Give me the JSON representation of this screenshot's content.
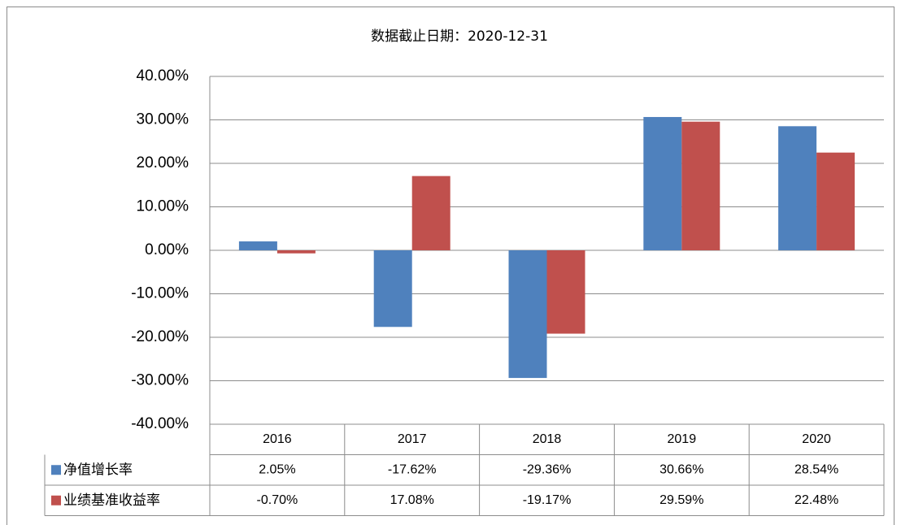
{
  "chart_data": {
    "type": "bar",
    "title": "数据截止日期：2020-12-31",
    "categories": [
      "2016",
      "2017",
      "2018",
      "2019",
      "2020"
    ],
    "series": [
      {
        "name": "净值增长率",
        "color": "#4f81bd",
        "values": [
          2.05,
          -17.62,
          -29.36,
          30.66,
          28.54
        ],
        "value_labels": [
          "2.05%",
          "-17.62%",
          "-29.36%",
          "30.66%",
          "28.54%"
        ]
      },
      {
        "name": "业绩基准收益率",
        "color": "#c0504d",
        "values": [
          -0.7,
          17.08,
          -19.17,
          29.59,
          22.48
        ],
        "value_labels": [
          "-0.70%",
          "17.08%",
          "-19.17%",
          "29.59%",
          "22.48%"
        ]
      }
    ],
    "ylim": [
      -40,
      40
    ],
    "yticks": [
      {
        "value": -40,
        "label": "-40.00%"
      },
      {
        "value": -30,
        "label": "-30.00%"
      },
      {
        "value": -20,
        "label": "-20.00%"
      },
      {
        "value": -10,
        "label": "-10.00%"
      },
      {
        "value": 0,
        "label": "0.00%"
      },
      {
        "value": 10,
        "label": "10.00%"
      },
      {
        "value": 20,
        "label": "20.00%"
      },
      {
        "value": 30,
        "label": "30.00%"
      },
      {
        "value": 40,
        "label": "40.00%"
      }
    ],
    "grid": true
  }
}
